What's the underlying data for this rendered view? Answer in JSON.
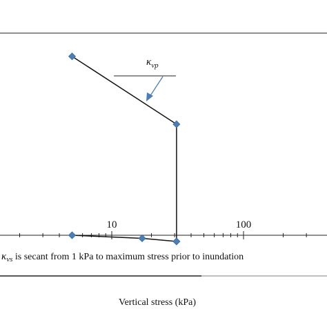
{
  "chart_data": {
    "type": "line",
    "xscale": "log",
    "xlabel": "Vertical stress (kPa)",
    "ylabel": "",
    "title": "",
    "x_tick_labels": [
      {
        "value": 10,
        "label": "10"
      },
      {
        "value": 100,
        "label": "100"
      }
    ],
    "x_minor_ticks": [
      2,
      3,
      4,
      5,
      6,
      7,
      8,
      9,
      20,
      30,
      40,
      50,
      60,
      70,
      80,
      90,
      200,
      300
    ],
    "series": [
      {
        "color": "#4a7ebb",
        "points": [
          {
            "x": 5,
            "y": 0.87
          },
          {
            "x": 31,
            "y": 0.54
          },
          {
            "x": 31,
            "y": -0.03
          }
        ]
      },
      {
        "color": "#4a7ebb",
        "points": [
          {
            "x": 5,
            "y": 0.0
          },
          {
            "x": 17,
            "y": -0.015
          },
          {
            "x": 31,
            "y": -0.03
          }
        ]
      }
    ],
    "annotations": {
      "kappa_vp": {
        "symbol": "κ",
        "subscript": "vp"
      },
      "kappa_vs_note": {
        "symbol": "κ",
        "subscript": "vs",
        "text": " is secant from 1 kPa to maximum stress prior to inundation"
      }
    },
    "grid": false,
    "legend": "none"
  }
}
